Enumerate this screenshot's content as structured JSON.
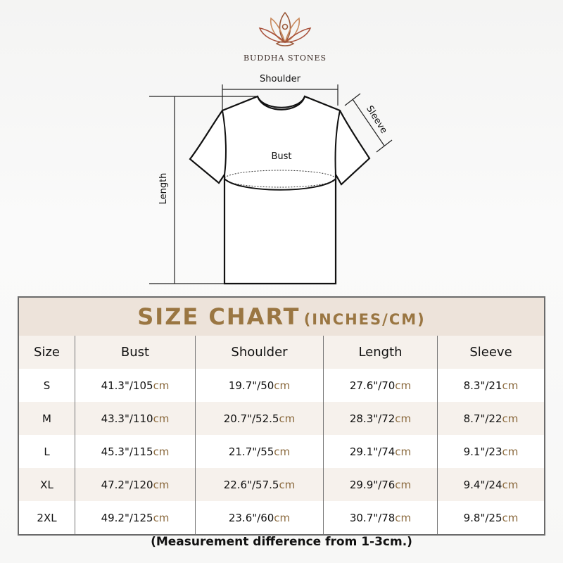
{
  "brand": {
    "name": "BUDDHA STONES"
  },
  "diagram": {
    "shoulder": "Shoulder",
    "sleeve": "Sleeve",
    "bust": "Bust",
    "length": "Length"
  },
  "size_chart": {
    "title": "SIZE CHART",
    "units": "(INCHES/CM)",
    "headers": [
      "Size",
      "Bust",
      "Shoulder",
      "Length",
      "Sleeve"
    ],
    "unit_suffix": "cm",
    "rows": [
      {
        "size": "S",
        "bust": "41.3\"/105",
        "shoulder": "19.7\"/50",
        "length": "27.6\"/70",
        "sleeve": "8.3\"/21"
      },
      {
        "size": "M",
        "bust": "43.3\"/110",
        "shoulder": "20.7\"/52.5",
        "length": "28.3\"/72",
        "sleeve": "8.7\"/22"
      },
      {
        "size": "L",
        "bust": "45.3\"/115",
        "shoulder": "21.7\"/55",
        "length": "29.1\"/74",
        "sleeve": "9.1\"/23"
      },
      {
        "size": "XL",
        "bust": "47.2\"/120",
        "shoulder": "22.6\"/57.5",
        "length": "29.9\"/76",
        "sleeve": "9.4\"/24"
      },
      {
        "size": "2XL",
        "bust": "49.2\"/125",
        "shoulder": "23.6\"/60",
        "length": "30.7\"/78",
        "sleeve": "9.8\"/25"
      }
    ],
    "note": "(Measurement difference from 1-3cm.)"
  },
  "colors": {
    "title": "#9a7642",
    "cm": "#8b6a3e",
    "band": "#ede3da"
  }
}
